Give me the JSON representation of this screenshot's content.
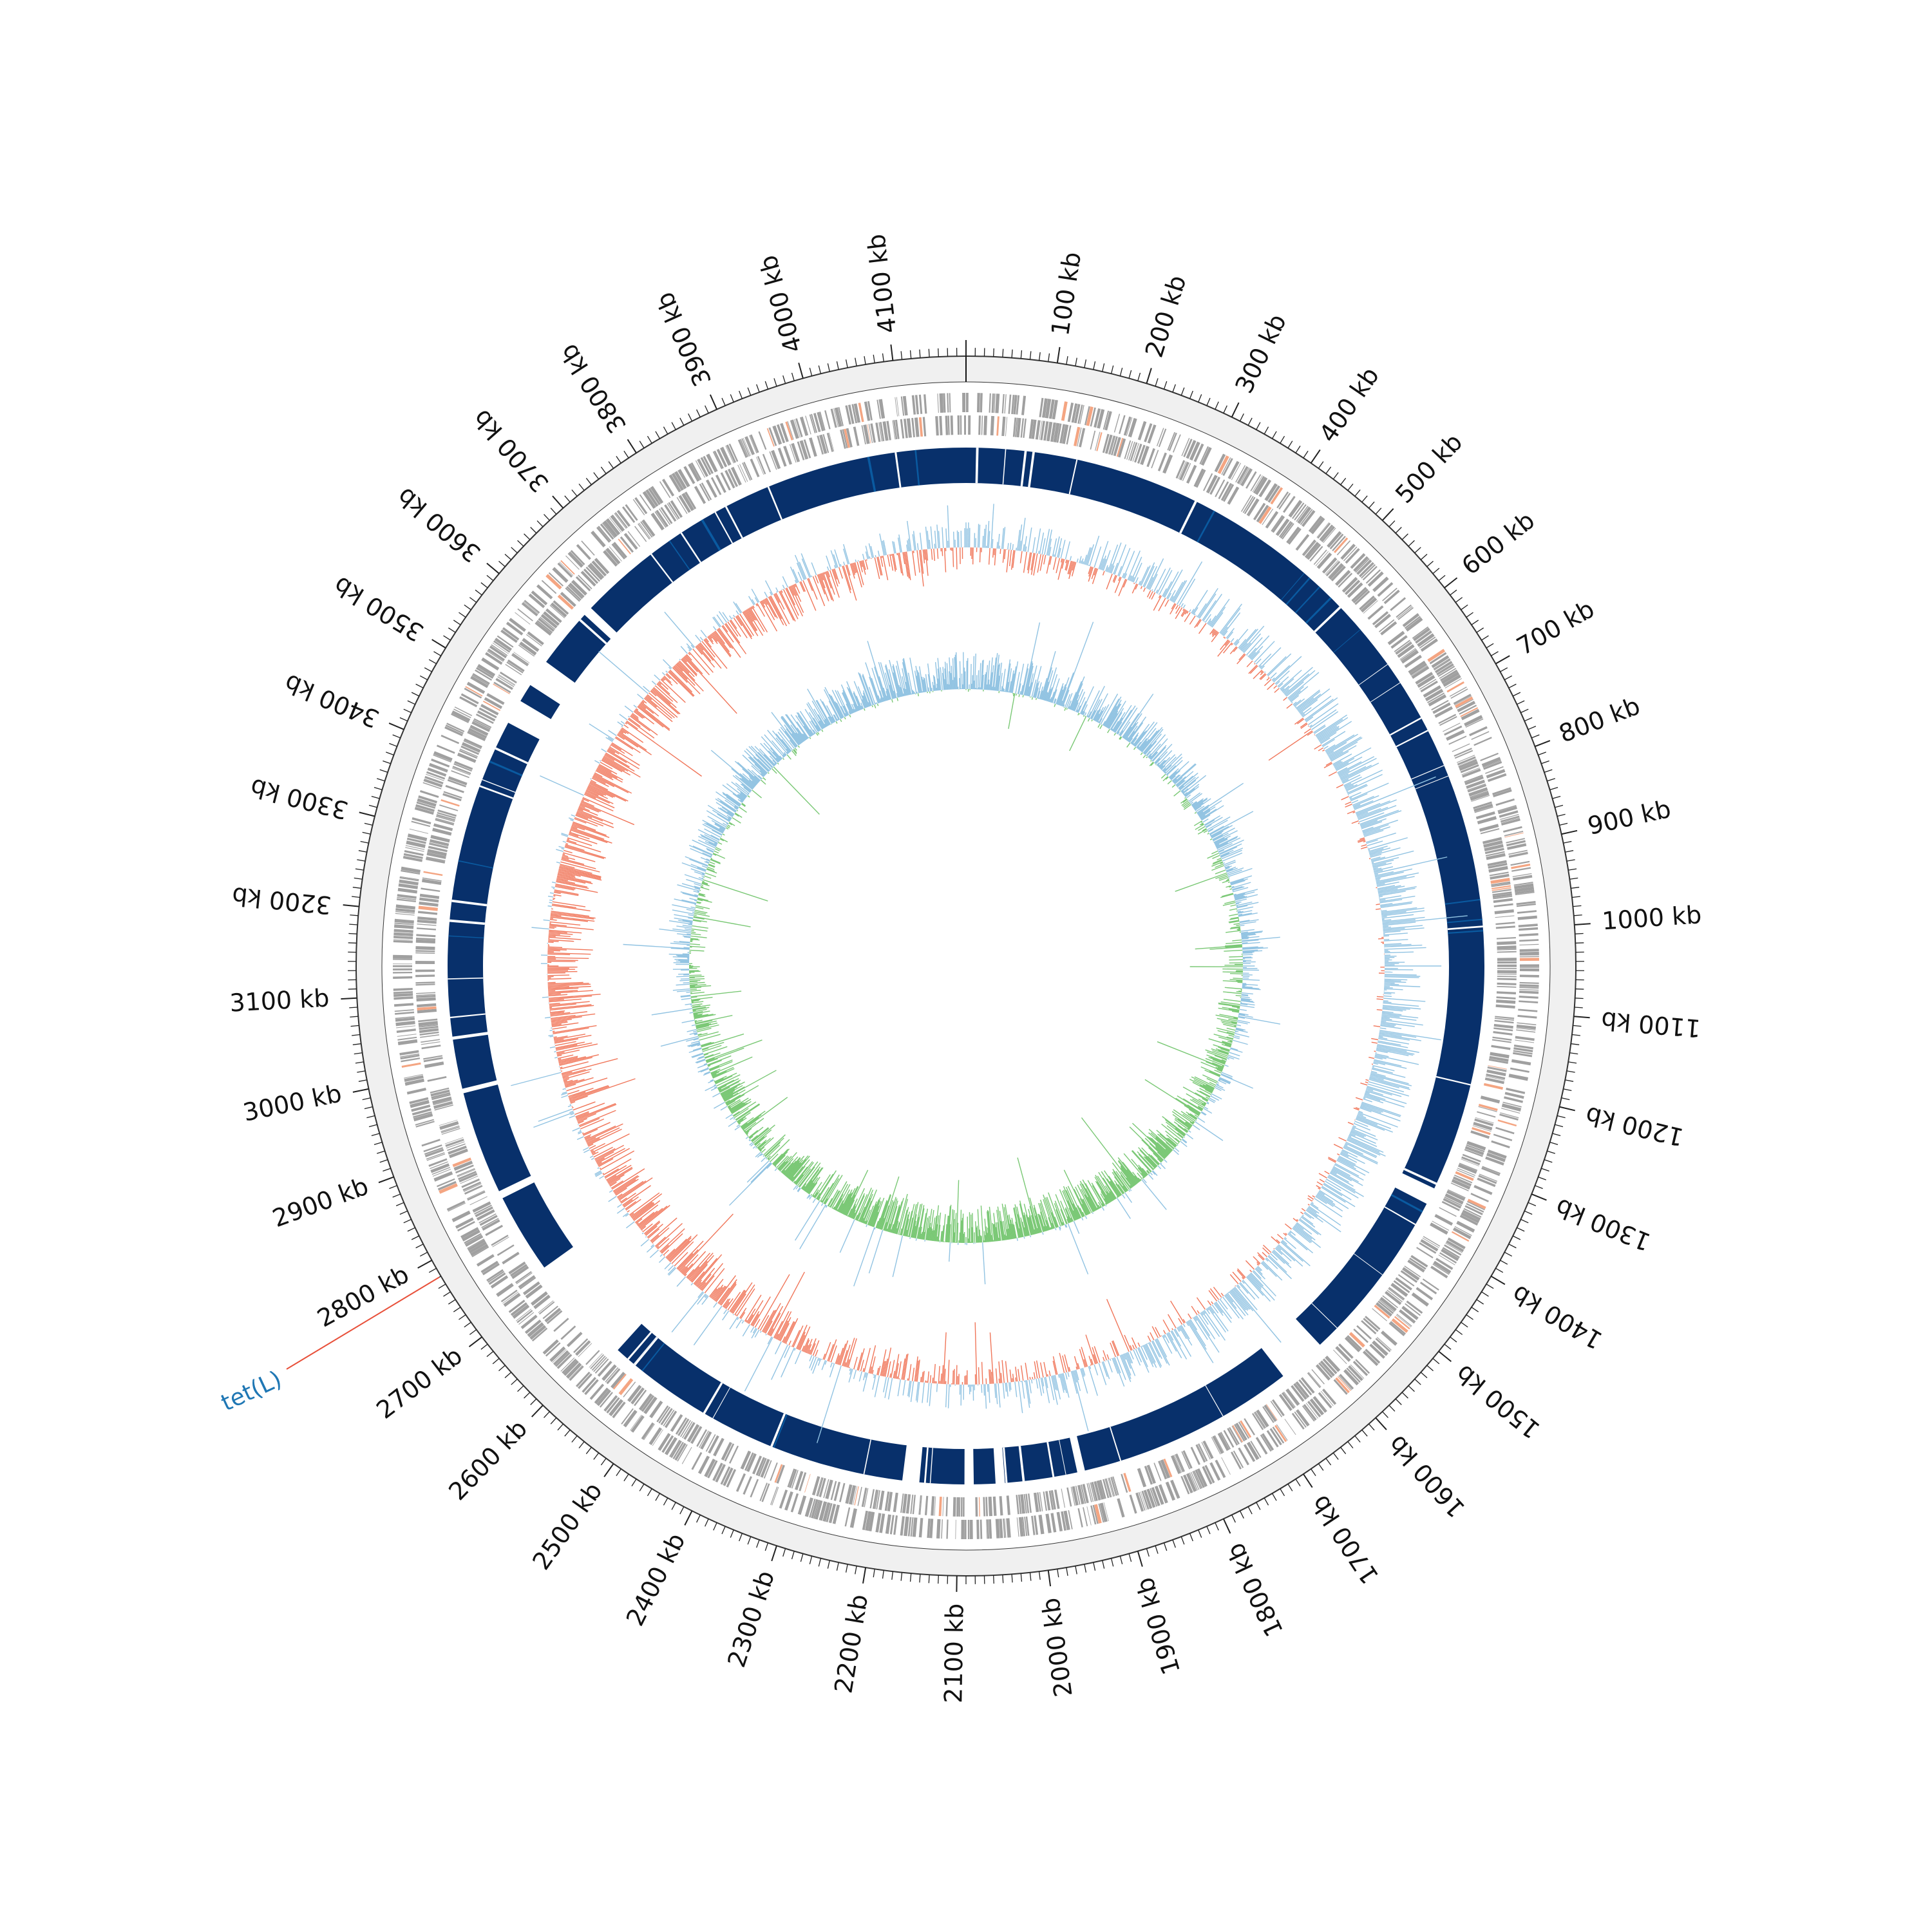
{
  "figure": {
    "genome_length_kb": 4180,
    "ticks": {
      "labels": [
        "100 kb",
        "200 kb",
        "300 kb",
        "400 kb",
        "500 kb",
        "600 kb",
        "700 kb",
        "800 kb",
        "900 kb",
        "1000 kb",
        "1100 kb",
        "1200 kb",
        "1300 kb",
        "1400 kb",
        "1500 kb",
        "1600 kb",
        "1700 kb",
        "1800 kb",
        "1900 kb",
        "2000 kb",
        "2100 kb",
        "2200 kb",
        "2300 kb",
        "2400 kb",
        "2500 kb",
        "2600 kb",
        "2700 kb",
        "2800 kb",
        "2900 kb",
        "3000 kb",
        "3100 kb",
        "3200 kb",
        "3300 kb",
        "3400 kb",
        "3500 kb",
        "3600 kb",
        "3700 kb",
        "3800 kb",
        "3900 kb",
        "4000 kb",
        "4100 kb"
      ],
      "major_step_kb": 100,
      "minor_step_kb": 10
    },
    "annotation": {
      "label": "tet(L)",
      "position_kb": 2780,
      "label_color": "#1f77b4",
      "leader_color": "#e8503a"
    },
    "blast_gaps_kb": [
      [
        2580,
        2720
      ],
      [
        3460,
        3490
      ],
      [
        3515,
        3550
      ],
      [
        1340,
        1360
      ],
      [
        1590,
        1650
      ],
      [
        2150,
        2170
      ],
      [
        2080,
        2090
      ],
      [
        2040,
        2050
      ],
      [
        1935,
        1945
      ],
      [
        2825,
        2835
      ],
      [
        2970,
        2975
      ],
      [
        3040,
        3042
      ],
      [
        3630,
        3640
      ],
      [
        4195,
        4200
      ]
    ],
    "colors": {
      "outer_ring": "#f0f0f0",
      "gene_feature": "#a0a0a0",
      "rna_feature": "#f4a582",
      "blast_hit": "#08306b",
      "blast_hit_light": "#0a5aa0",
      "gc_positive": "#91c3e2",
      "gc_negative": "#f0765a",
      "skew_positive": "#91c3e2",
      "skew_negative": "#7ac875",
      "axis_line": "#333333"
    }
  }
}
